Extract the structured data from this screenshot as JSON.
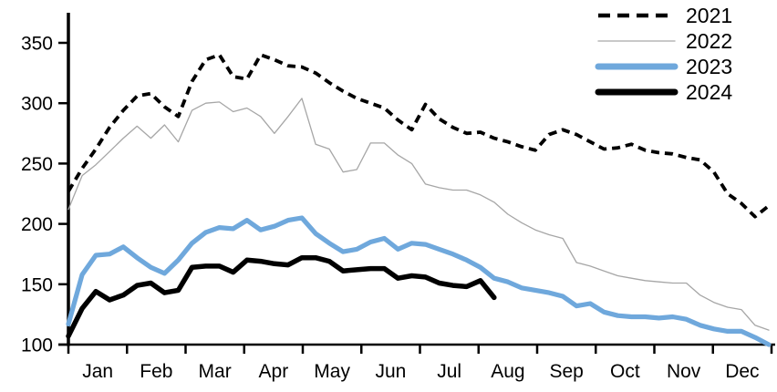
{
  "chart_data": {
    "type": "line",
    "title": "",
    "legend_position": "top-right",
    "grid": false,
    "y_axis": {
      "min": 100,
      "max": 350,
      "ticks": [
        100,
        150,
        200,
        250,
        300,
        350
      ]
    },
    "x_axis": {
      "tick_labels": [
        "Jan",
        "Feb",
        "Mar",
        "Apr",
        "May",
        "Jun",
        "Jul",
        "Aug",
        "Sep",
        "Oct",
        "Nov",
        "Dec"
      ]
    },
    "frequency": "weekly",
    "series": [
      {
        "name": "2021",
        "color": "#000000",
        "line_style": "dashed",
        "line_width": 3.8,
        "values": [
          227,
          246,
          262,
          280,
          294,
          306,
          308,
          297,
          289,
          318,
          336,
          340,
          322,
          320,
          340,
          336,
          331,
          330,
          325,
          317,
          310,
          304,
          300,
          296,
          286,
          278,
          299,
          287,
          280,
          275,
          276,
          271,
          268,
          264,
          261,
          274,
          278,
          274,
          268,
          262,
          263,
          266,
          261,
          259,
          258,
          255,
          253,
          243,
          225,
          217,
          206,
          215
        ]
      },
      {
        "name": "2022",
        "color": "#a6a6a6",
        "line_style": "solid",
        "line_width": 1.3,
        "values": [
          212,
          240,
          249,
          260,
          271,
          281,
          271,
          282,
          268,
          294,
          300,
          301,
          293,
          296,
          289,
          275,
          289,
          304,
          266,
          262,
          243,
          245,
          267,
          267,
          257,
          250,
          233,
          230,
          228,
          228,
          224,
          218,
          208,
          201,
          195,
          191,
          188,
          168,
          165,
          161,
          157,
          155,
          153,
          152,
          151,
          151,
          141,
          135,
          131,
          129,
          116,
          112
        ]
      },
      {
        "name": "2023",
        "color": "#6fa8dc",
        "line_style": "solid",
        "line_width": 5.2,
        "values": [
          117,
          158,
          174,
          175,
          181,
          172,
          164,
          159,
          170,
          184,
          193,
          197,
          196,
          203,
          195,
          198,
          203,
          205,
          192,
          184,
          177,
          179,
          185,
          188,
          179,
          184,
          183,
          179,
          175,
          170,
          164,
          155,
          152,
          147,
          145,
          143,
          140,
          132,
          134,
          127,
          124,
          123,
          123,
          122,
          123,
          121,
          116,
          113,
          111,
          111,
          106,
          100
        ]
      },
      {
        "name": "2024",
        "color": "#000000",
        "line_style": "solid",
        "line_width": 5.5,
        "values": [
          107,
          130,
          144,
          137,
          141,
          149,
          151,
          143,
          145,
          164,
          165,
          165,
          160,
          170,
          169,
          167,
          166,
          172,
          172,
          169,
          161,
          162,
          163,
          163,
          155,
          157,
          156,
          151,
          149,
          148,
          153,
          139
        ]
      }
    ]
  }
}
